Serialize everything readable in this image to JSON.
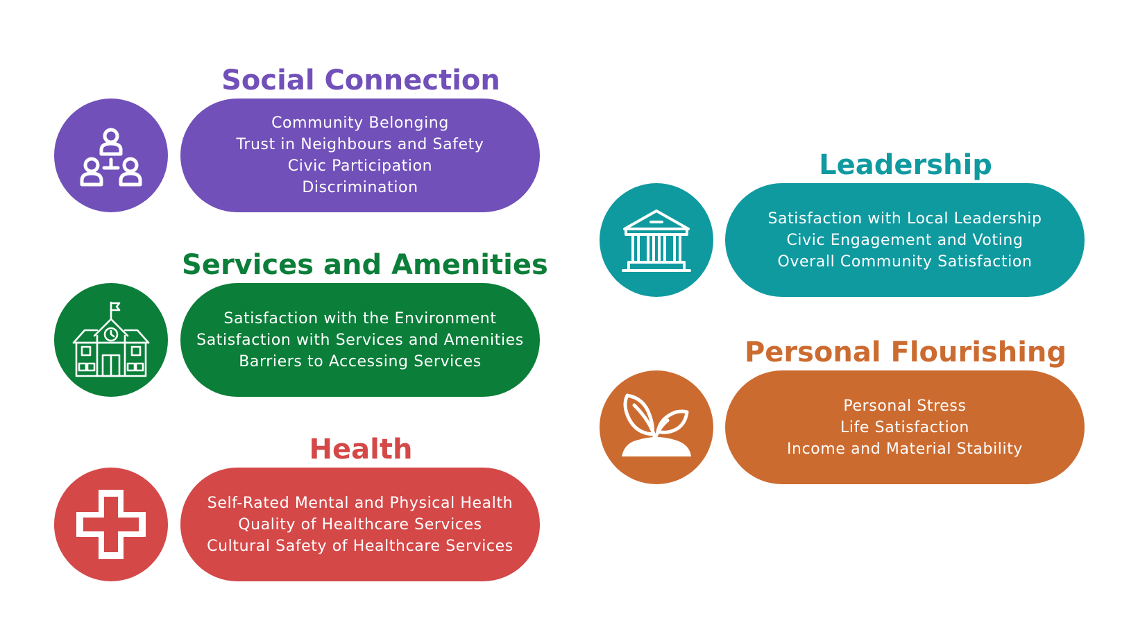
{
  "colors": {
    "social": "#7150b9",
    "services": "#0b7e39",
    "health": "#d44848",
    "leadership": "#0f9aa0",
    "flourishing": "#cc6b30"
  },
  "domains": {
    "social": {
      "title": "Social Connection",
      "icon": "people-network-icon",
      "items": [
        "Community Belonging",
        "Trust in Neighbours and Safety",
        "Civic Participation",
        "Discrimination"
      ]
    },
    "services": {
      "title": "Services and Amenities",
      "icon": "school-building-icon",
      "items": [
        "Satisfaction with the Environment",
        "Satisfaction with Services and Amenities",
        "Barriers to Accessing Services"
      ]
    },
    "health": {
      "title": "Health",
      "icon": "medical-cross-icon",
      "items": [
        "Self-Rated Mental and Physical Health",
        "Quality of Healthcare Services",
        "Cultural Safety of Healthcare Services"
      ]
    },
    "leadership": {
      "title": "Leadership",
      "icon": "government-building-icon",
      "items": [
        "Satisfaction with Local Leadership",
        "Civic Engagement and Voting",
        "Overall Community Satisfaction"
      ]
    },
    "flourishing": {
      "title": "Personal Flourishing",
      "icon": "sprout-icon",
      "items": [
        "Personal Stress",
        "Life Satisfaction",
        "Income and Material Stability"
      ]
    }
  }
}
